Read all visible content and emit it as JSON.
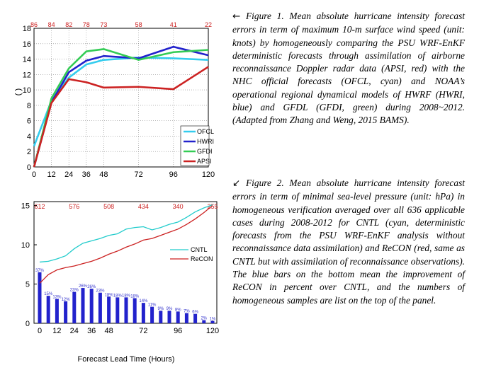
{
  "captions": {
    "fig1": {
      "arrow": "←",
      "text": "Figure 1. Mean absolute hurricane intensity forecast errors in term of maximum 10-m surface wind speed (unit: knots) by homogeneously comparing the PSU WRF-EnKF deterministic forecasts through assimilation of airborne reconnaissance Doppler radar data (APSI, red) with the NHC official forecasts (OFCL, cyan) and NOAA’s operational regional dynamical models of HWRF (HWRI, blue) and GFDL (GFDI, green) during 2008~2012. (Adapted from Zhang and Weng, 2015 BAMS)."
    },
    "fig2": {
      "arrow": "↙",
      "text": "Figure 2. Mean absolute hurricane intensity forecast errors in term of minimal sea-level pressure (unit: hPa) in homogeneous verification averaged over all 636 applicable cases during 2008-2012 for CNTL (cyan, deterministic forecasts from the PSU WRF-EnKF analysis without reconnaissance data assimilation) and ReCON (red, same as CNTL but with assimilation of reconnaissance observations). The blue bars on the bottom mean the improvement of ReCON in percent over CNTL, and the numbers of homogeneous samples are list on the top of the panel."
    }
  },
  "chart_data": [
    {
      "type": "line",
      "ylabel": "( )",
      "xlim": [
        0,
        120
      ],
      "ylim": [
        0,
        18
      ],
      "xticks": [
        0,
        12,
        24,
        36,
        48,
        72,
        96,
        120
      ],
      "yticks": [
        0,
        2,
        4,
        6,
        8,
        10,
        12,
        14,
        16,
        18
      ],
      "grid": "dotted",
      "legend_position": "bottom-right",
      "sample_counts": [
        {
          "x": 0,
          "label": "86"
        },
        {
          "x": 12,
          "label": "84"
        },
        {
          "x": 24,
          "label": "82"
        },
        {
          "x": 36,
          "label": "78"
        },
        {
          "x": 48,
          "label": "73"
        },
        {
          "x": 72,
          "label": "58"
        },
        {
          "x": 96,
          "label": "41"
        },
        {
          "x": 120,
          "label": "22"
        }
      ],
      "x": [
        0,
        12,
        24,
        36,
        48,
        72,
        96,
        120
      ],
      "series": [
        {
          "name": "OFCL",
          "color": "#33ccee",
          "values": [
            2.7,
            8.6,
            11.6,
            13.3,
            13.9,
            14.2,
            14.1,
            13.9
          ]
        },
        {
          "name": "HWRI",
          "color": "#2222cc",
          "values": [
            0,
            8.4,
            12.3,
            13.8,
            14.4,
            14.1,
            15.6,
            14.5
          ]
        },
        {
          "name": "GFDI",
          "color": "#33cc55",
          "values": [
            0,
            8.9,
            12.8,
            15.0,
            15.3,
            13.9,
            14.9,
            15.2
          ]
        },
        {
          "name": "APSI",
          "color": "#cc2222",
          "values": [
            0,
            8.3,
            11.4,
            11.0,
            10.3,
            10.4,
            10.1,
            13.0
          ]
        }
      ]
    },
    {
      "type": "line",
      "xlabel": "Forecast Lead Time (Hours)",
      "xlim": [
        0,
        120
      ],
      "ylim": [
        0,
        15.5
      ],
      "xticks": [
        0,
        12,
        24,
        36,
        48,
        72,
        96,
        120
      ],
      "yticks": [
        0,
        5,
        10,
        15
      ],
      "legend_position": "right",
      "sample_counts": [
        {
          "x": 0,
          "label": "612"
        },
        {
          "x": 24,
          "label": "576"
        },
        {
          "x": 48,
          "label": "508"
        },
        {
          "x": 72,
          "label": "434"
        },
        {
          "x": 96,
          "label": "340"
        },
        {
          "x": 120,
          "label": "255"
        }
      ],
      "x": [
        0,
        6,
        12,
        18,
        24,
        30,
        36,
        42,
        48,
        54,
        60,
        66,
        72,
        78,
        84,
        90,
        96,
        102,
        108,
        114,
        120
      ],
      "series": [
        {
          "name": "CNTL",
          "color": "#22cccc",
          "values": [
            7.8,
            7.9,
            8.2,
            8.6,
            9.5,
            10.2,
            10.5,
            10.8,
            11.2,
            11.4,
            12.0,
            12.2,
            12.3,
            11.9,
            12.2,
            12.6,
            12.9,
            13.5,
            14.2,
            14.7,
            15.1
          ]
        },
        {
          "name": "ReCON",
          "color": "#cc2222",
          "values": [
            5.1,
            6.2,
            6.8,
            7.1,
            7.3,
            7.6,
            7.9,
            8.3,
            8.8,
            9.2,
            9.7,
            10.1,
            10.6,
            10.8,
            11.2,
            11.6,
            12.0,
            12.6,
            13.3,
            14.1,
            15.0
          ]
        }
      ],
      "bars": {
        "name": "improvement (%)",
        "color": "#2222cc",
        "x": [
          0,
          6,
          12,
          18,
          24,
          30,
          36,
          42,
          48,
          54,
          60,
          66,
          72,
          78,
          84,
          90,
          96,
          102,
          108,
          114,
          120
        ],
        "values": [
          6.5,
          3.5,
          3.1,
          2.8,
          4.0,
          4.5,
          4.4,
          3.9,
          3.4,
          3.3,
          3.3,
          3.2,
          2.6,
          2.1,
          1.6,
          1.6,
          1.5,
          1.3,
          1.2,
          0.4,
          0.3
        ],
        "labels": [
          "37%",
          "15%",
          "13%",
          "12%",
          "23%",
          "26%",
          "26%",
          "23%",
          "18%",
          "18%",
          "18%",
          "18%",
          "14%",
          "11%",
          "9%",
          "9%",
          "8%",
          "7%",
          "6%",
          "2%",
          "1%"
        ]
      }
    }
  ]
}
